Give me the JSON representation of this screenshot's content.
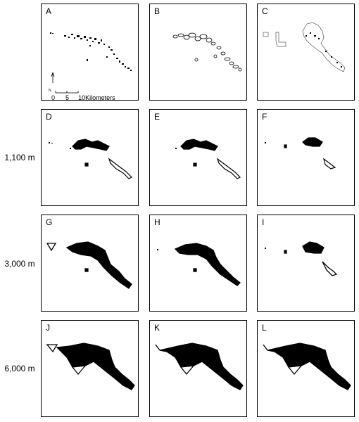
{
  "figure": {
    "row_labels": [
      "",
      "1,100 m",
      "3,000 m",
      "6,000 m"
    ],
    "panels": [
      {
        "letter": "A",
        "row": 0,
        "col": 0
      },
      {
        "letter": "B",
        "row": 0,
        "col": 1
      },
      {
        "letter": "C",
        "row": 0,
        "col": 2
      },
      {
        "letter": "D",
        "row": 1,
        "col": 0
      },
      {
        "letter": "E",
        "row": 1,
        "col": 1
      },
      {
        "letter": "F",
        "row": 1,
        "col": 2
      },
      {
        "letter": "G",
        "row": 2,
        "col": 0
      },
      {
        "letter": "H",
        "row": 2,
        "col": 1
      },
      {
        "letter": "I",
        "row": 2,
        "col": 2
      },
      {
        "letter": "J",
        "row": 3,
        "col": 0
      },
      {
        "letter": "K",
        "row": 3,
        "col": 1
      },
      {
        "letter": "L",
        "row": 3,
        "col": 2
      }
    ],
    "scale_bar": {
      "ticks": [
        "0",
        "5",
        "10"
      ],
      "unit": "Kilometers"
    },
    "north_arrow": {
      "label": "N"
    }
  }
}
